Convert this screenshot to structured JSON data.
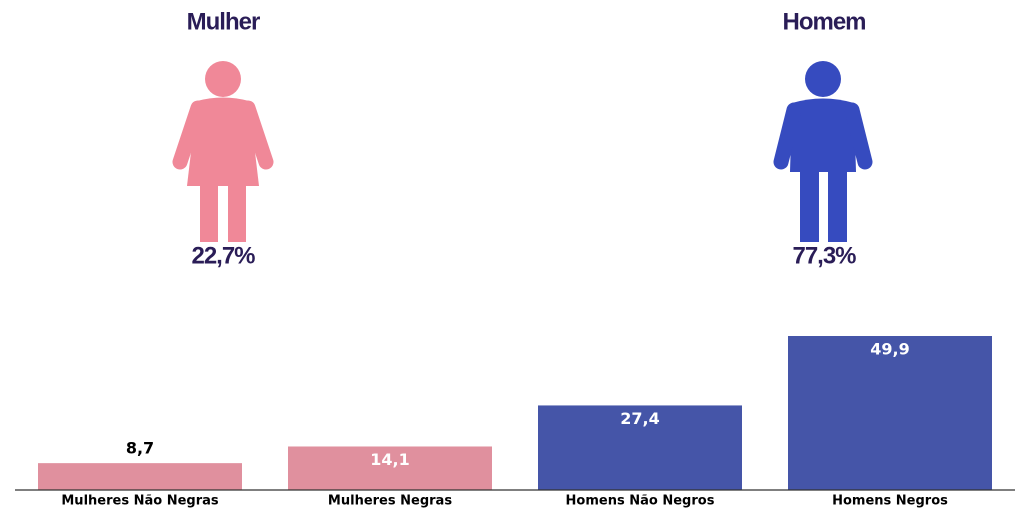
{
  "summary": [
    {
      "label": "Mulher",
      "value": 22.7,
      "value_label": "22,7%",
      "color": "#f08898"
    },
    {
      "label": "Homem",
      "value": 77.3,
      "value_label": "77,3%",
      "color": "#364bbf"
    }
  ],
  "chart_data": {
    "type": "bar",
    "categories": [
      "Mulheres Não Negras",
      "Mulheres Negras",
      "Homens Não Negros",
      "Homens Negros"
    ],
    "values": [
      8.7,
      14.1,
      27.4,
      49.9
    ],
    "value_labels": [
      "8,7",
      "14,1",
      "27,4",
      "49,9"
    ],
    "colors": [
      "#e0909e",
      "#e0909e",
      "#4555a8",
      "#4555a8"
    ]
  }
}
